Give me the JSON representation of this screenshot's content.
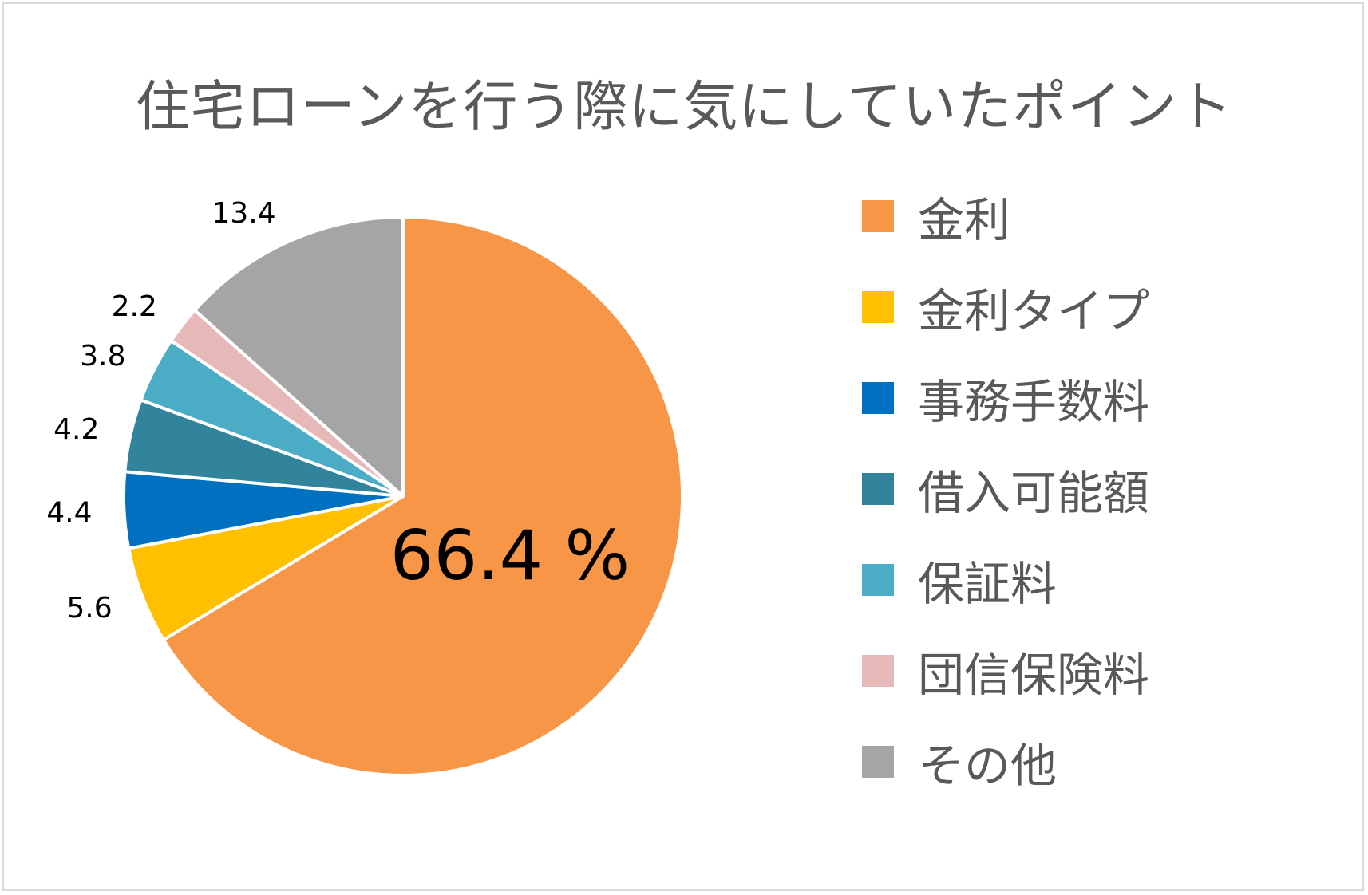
{
  "chart_data": {
    "type": "pie",
    "title": "住宅ローンを行う際に気にしていたポイント",
    "legend_position": "right",
    "slices": [
      {
        "name": "金利",
        "value": 66.4,
        "label": "66.4 %",
        "color": "#F79646"
      },
      {
        "name": "金利タイプ",
        "value": 5.6,
        "label": "5.6",
        "color": "#FFC000"
      },
      {
        "name": "事務手数料",
        "value": 4.4,
        "label": "4.4",
        "color": "#0070C0"
      },
      {
        "name": "借入可能額",
        "value": 4.2,
        "label": "4.2",
        "color": "#31849B"
      },
      {
        "name": "保証料",
        "value": 3.8,
        "label": "3.8",
        "color": "#4BACC6"
      },
      {
        "name": "団信保険料",
        "value": 2.2,
        "label": "2.2",
        "color": "#E6B9B8"
      },
      {
        "name": "その他",
        "value": 13.4,
        "label": "13.4",
        "color": "#A5A5A5"
      }
    ]
  }
}
